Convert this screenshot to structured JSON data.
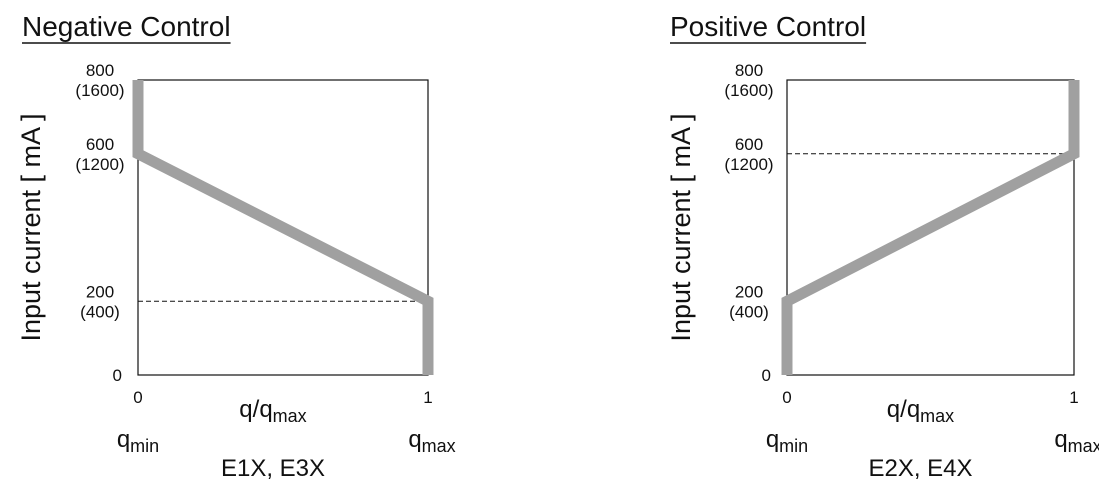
{
  "chart_data": [
    {
      "type": "line",
      "title": "Negative Control",
      "ylabel": "Input current [ mA ]",
      "xlabel_main": "q/q",
      "xlabel_sub": "max",
      "x_ticks": [
        "0",
        "1"
      ],
      "x_end_labels": [
        {
          "main": "q",
          "sub": "min"
        },
        {
          "main": "q",
          "sub": "max"
        }
      ],
      "models": "E1X, E3X",
      "xlim": [
        0,
        1
      ],
      "ylim": [
        0,
        800
      ],
      "y_ticks": [
        {
          "value": 0,
          "label": "0",
          "alt": ""
        },
        {
          "value": 200,
          "label": "200",
          "alt": "(400)"
        },
        {
          "value": 600,
          "label": "600",
          "alt": "(1200)"
        },
        {
          "value": 800,
          "label": "800",
          "alt": "(1600)"
        }
      ],
      "series": [
        {
          "x": [
            0,
            0,
            1,
            1
          ],
          "y": [
            800,
            600,
            200,
            0
          ]
        }
      ],
      "reference_lines": [
        200
      ],
      "line_color": "#a0a0a0"
    },
    {
      "type": "line",
      "title": "Positive Control",
      "ylabel": "Input current [ mA ]",
      "xlabel_main": "q/q",
      "xlabel_sub": "max",
      "x_ticks": [
        "0",
        "1"
      ],
      "x_end_labels": [
        {
          "main": "q",
          "sub": "min"
        },
        {
          "main": "q",
          "sub": "max"
        }
      ],
      "models": "E2X, E4X",
      "xlim": [
        0,
        1
      ],
      "ylim": [
        0,
        800
      ],
      "y_ticks": [
        {
          "value": 0,
          "label": "0",
          "alt": ""
        },
        {
          "value": 200,
          "label": "200",
          "alt": "(400)"
        },
        {
          "value": 600,
          "label": "600",
          "alt": "(1200)"
        },
        {
          "value": 800,
          "label": "800",
          "alt": "(1600)"
        }
      ],
      "series": [
        {
          "x": [
            0,
            0,
            1,
            1
          ],
          "y": [
            0,
            200,
            600,
            800
          ]
        }
      ],
      "reference_lines": [
        600
      ],
      "line_color": "#a0a0a0"
    }
  ]
}
